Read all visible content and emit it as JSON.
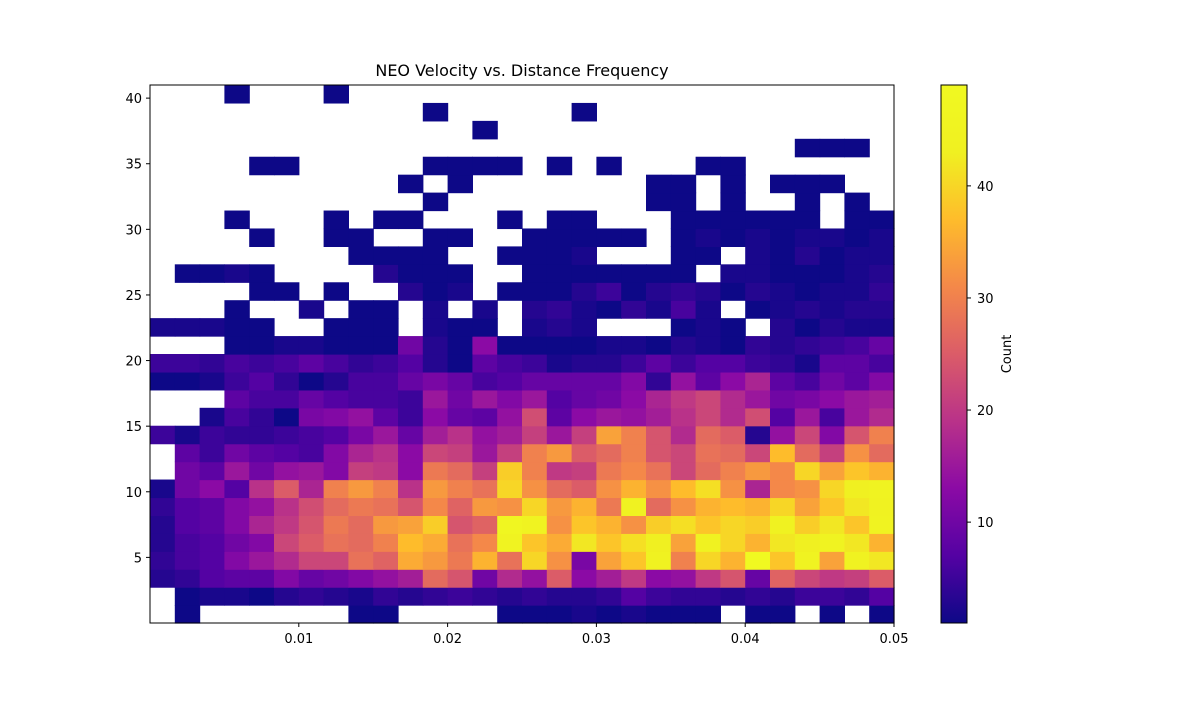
{
  "chart_data": {
    "type": "heatmap",
    "title": "NEO Velocity vs. Distance Frequency",
    "xlabel": "",
    "ylabel": "",
    "xlim": [
      0.0,
      0.05
    ],
    "ylim": [
      0.0,
      41.0
    ],
    "x_ticks": [
      0.01,
      0.02,
      0.03,
      0.04,
      0.05
    ],
    "x_tick_labels": [
      "0.01",
      "0.02",
      "0.03",
      "0.04",
      "0.05"
    ],
    "y_ticks": [
      5,
      10,
      15,
      20,
      25,
      30,
      35,
      40
    ],
    "y_tick_labels": [
      "5",
      "10",
      "15",
      "20",
      "25",
      "30",
      "35",
      "40"
    ],
    "colorbar": {
      "label": "Count",
      "min": 1,
      "max": 49,
      "ticks": [
        10,
        20,
        30,
        40
      ],
      "tick_labels": [
        "10",
        "20",
        "30",
        "40"
      ],
      "colormap": "plasma"
    },
    "x_bins": {
      "count": 30,
      "start": 0.0,
      "end": 0.05
    },
    "y_bins": {
      "count": 30,
      "start": 0.0,
      "end": 41.0
    },
    "grid": false,
    "rows_note": "counts[0] is the lowest velocity bin; 0 = empty cell",
    "counts": [
      [
        0,
        1,
        0,
        0,
        0,
        0,
        0,
        0,
        1,
        1,
        0,
        0,
        0,
        0,
        1,
        1,
        1,
        2,
        1,
        2,
        1,
        1,
        1,
        0,
        1,
        1,
        0,
        1,
        0,
        1
      ],
      [
        0,
        1,
        2,
        2,
        1,
        3,
        4,
        3,
        2,
        4,
        3,
        4,
        5,
        4,
        3,
        4,
        3,
        3,
        4,
        7,
        5,
        4,
        4,
        3,
        4,
        3,
        5,
        5,
        4,
        7
      ],
      [
        3,
        4,
        7,
        8,
        8,
        12,
        9,
        10,
        12,
        14,
        16,
        27,
        24,
        10,
        18,
        14,
        25,
        13,
        16,
        20,
        13,
        14,
        20,
        24,
        9,
        26,
        22,
        20,
        21,
        25
      ],
      [
        4,
        6,
        7,
        12,
        15,
        18,
        22,
        22,
        28,
        26,
        35,
        33,
        29,
        36,
        28,
        40,
        32,
        11,
        34,
        38,
        44,
        30,
        40,
        36,
        49,
        38,
        45,
        34,
        44,
        42
      ],
      [
        3,
        6,
        7,
        10,
        12,
        22,
        25,
        28,
        27,
        30,
        37,
        35,
        28,
        31,
        45,
        38,
        35,
        42,
        38,
        41,
        43,
        34,
        44,
        40,
        36,
        42,
        43,
        45,
        42,
        36
      ],
      [
        3,
        7,
        8,
        12,
        17,
        20,
        24,
        29,
        27,
        33,
        34,
        39,
        24,
        26,
        47,
        45,
        32,
        38,
        36,
        32,
        39,
        41,
        38,
        40,
        39,
        44,
        39,
        42,
        38,
        45
      ],
      [
        4,
        7,
        8,
        12,
        14,
        19,
        23,
        27,
        29,
        28,
        24,
        31,
        26,
        33,
        32,
        40,
        33,
        36,
        29,
        44,
        27,
        32,
        36,
        37,
        36,
        40,
        34,
        38,
        42,
        44
      ],
      [
        2,
        10,
        13,
        7,
        19,
        25,
        17,
        30,
        33,
        30,
        19,
        33,
        30,
        28,
        40,
        32,
        27,
        25,
        32,
        36,
        32,
        37,
        41,
        32,
        17,
        31,
        32,
        40,
        43,
        45
      ],
      [
        0,
        10,
        8,
        15,
        10,
        14,
        15,
        12,
        21,
        20,
        13,
        29,
        27,
        21,
        39,
        30,
        20,
        21,
        29,
        31,
        28,
        22,
        27,
        30,
        33,
        31,
        40,
        34,
        38,
        36
      ],
      [
        0,
        8,
        5,
        10,
        8,
        7,
        6,
        12,
        17,
        19,
        13,
        22,
        21,
        15,
        21,
        30,
        33,
        25,
        27,
        30,
        24,
        22,
        28,
        27,
        22,
        37,
        27,
        21,
        32,
        27
      ],
      [
        5,
        2,
        5,
        4,
        4,
        5,
        6,
        7,
        11,
        15,
        9,
        16,
        19,
        14,
        16,
        21,
        15,
        21,
        34,
        30,
        24,
        18,
        27,
        25,
        3,
        14,
        22,
        12,
        24,
        30
      ],
      [
        0,
        0,
        2,
        6,
        4,
        1,
        11,
        12,
        14,
        8,
        5,
        13,
        9,
        8,
        14,
        23,
        8,
        13,
        15,
        14,
        16,
        19,
        22,
        18,
        23,
        7,
        15,
        6,
        15,
        18
      ],
      [
        0,
        0,
        0,
        8,
        6,
        6,
        9,
        7,
        6,
        6,
        5,
        15,
        10,
        15,
        12,
        15,
        7,
        9,
        10,
        13,
        17,
        20,
        22,
        18,
        15,
        10,
        11,
        13,
        15,
        16
      ],
      [
        1,
        1,
        2,
        5,
        7,
        4,
        1,
        3,
        6,
        6,
        9,
        11,
        9,
        6,
        7,
        9,
        9,
        9,
        9,
        12,
        4,
        14,
        8,
        13,
        17,
        8,
        6,
        10,
        8,
        12
      ],
      [
        5,
        5,
        4,
        6,
        5,
        6,
        8,
        6,
        4,
        5,
        7,
        3,
        1,
        8,
        6,
        5,
        2,
        3,
        3,
        5,
        8,
        5,
        7,
        7,
        5,
        4,
        2,
        8,
        8,
        6
      ],
      [
        0,
        0,
        0,
        1,
        1,
        2,
        2,
        1,
        1,
        1,
        10,
        3,
        1,
        13,
        1,
        1,
        1,
        1,
        2,
        2,
        1,
        3,
        2,
        1,
        4,
        3,
        4,
        5,
        6,
        9
      ],
      [
        2,
        2,
        2,
        1,
        1,
        0,
        0,
        1,
        1,
        1,
        0,
        2,
        1,
        1,
        0,
        2,
        3,
        2,
        0,
        0,
        0,
        1,
        2,
        1,
        0,
        3,
        1,
        3,
        2,
        2
      ],
      [
        0,
        0,
        0,
        1,
        0,
        0,
        2,
        0,
        1,
        1,
        0,
        2,
        0,
        2,
        0,
        3,
        4,
        2,
        1,
        4,
        2,
        6,
        2,
        0,
        1,
        2,
        3,
        2,
        3,
        3
      ],
      [
        0,
        0,
        0,
        0,
        1,
        1,
        0,
        1,
        0,
        0,
        3,
        1,
        2,
        0,
        1,
        1,
        1,
        3,
        5,
        1,
        3,
        4,
        3,
        1,
        3,
        2,
        1,
        2,
        2,
        4
      ],
      [
        0,
        1,
        1,
        2,
        1,
        0,
        0,
        0,
        0,
        3,
        1,
        1,
        1,
        0,
        0,
        1,
        1,
        1,
        1,
        1,
        1,
        1,
        0,
        2,
        2,
        1,
        1,
        1,
        2,
        3
      ],
      [
        0,
        0,
        0,
        0,
        0,
        0,
        0,
        0,
        1,
        1,
        1,
        1,
        0,
        0,
        1,
        1,
        1,
        2,
        0,
        0,
        0,
        1,
        1,
        0,
        2,
        1,
        3,
        1,
        2,
        2
      ],
      [
        0,
        0,
        0,
        0,
        1,
        0,
        0,
        1,
        1,
        0,
        0,
        1,
        1,
        0,
        0,
        1,
        1,
        1,
        1,
        1,
        0,
        1,
        2,
        1,
        2,
        1,
        2,
        2,
        1,
        2
      ],
      [
        0,
        0,
        0,
        1,
        0,
        0,
        0,
        1,
        0,
        1,
        1,
        0,
        0,
        0,
        1,
        0,
        1,
        1,
        0,
        0,
        0,
        1,
        1,
        1,
        1,
        1,
        1,
        0,
        1,
        1
      ],
      [
        0,
        0,
        0,
        0,
        0,
        0,
        0,
        0,
        0,
        0,
        0,
        1,
        0,
        0,
        0,
        0,
        0,
        0,
        0,
        0,
        1,
        1,
        0,
        1,
        0,
        0,
        1,
        0,
        1,
        0
      ],
      [
        0,
        0,
        0,
        0,
        0,
        0,
        0,
        0,
        0,
        0,
        1,
        0,
        1,
        0,
        0,
        0,
        0,
        0,
        0,
        0,
        1,
        1,
        0,
        1,
        0,
        1,
        1,
        1,
        0,
        0
      ],
      [
        0,
        0,
        0,
        0,
        1,
        1,
        0,
        0,
        0,
        0,
        0,
        1,
        1,
        1,
        1,
        0,
        1,
        0,
        1,
        0,
        0,
        0,
        1,
        1,
        0,
        0,
        0,
        0,
        0,
        0
      ],
      [
        0,
        0,
        0,
        0,
        0,
        0,
        0,
        0,
        0,
        0,
        0,
        0,
        0,
        0,
        0,
        0,
        0,
        0,
        0,
        0,
        0,
        0,
        0,
        0,
        0,
        0,
        1,
        1,
        1,
        0
      ],
      [
        0,
        0,
        0,
        0,
        0,
        0,
        0,
        0,
        0,
        0,
        0,
        0,
        0,
        1,
        0,
        0,
        0,
        0,
        0,
        0,
        0,
        0,
        0,
        0,
        0,
        0,
        0,
        0,
        0,
        0
      ],
      [
        0,
        0,
        0,
        0,
        0,
        0,
        0,
        0,
        0,
        0,
        0,
        1,
        0,
        0,
        0,
        0,
        0,
        1,
        0,
        0,
        0,
        0,
        0,
        0,
        0,
        0,
        0,
        0,
        0,
        0
      ],
      [
        0,
        0,
        0,
        1,
        0,
        0,
        0,
        1,
        0,
        0,
        0,
        0,
        0,
        0,
        0,
        0,
        0,
        0,
        0,
        0,
        0,
        0,
        0,
        0,
        0,
        0,
        0,
        0,
        0,
        0
      ]
    ]
  }
}
